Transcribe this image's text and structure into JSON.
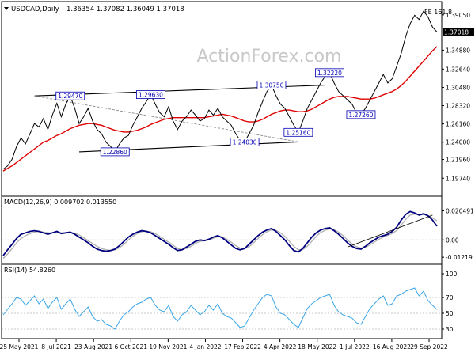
{
  "header": {
    "symbol": "USDCAD,Daily",
    "ohlc": "1.36354 1.37082 1.36049 1.37018"
  },
  "watermark": "ActionForex.com",
  "colors": {
    "price": "#000000",
    "ma55": "#e00000",
    "macd": "#00007f",
    "signal": "#b0b0b0",
    "rsi": "#3aa6e8",
    "level_box": "#0000b4",
    "trendline": "#000000",
    "grid": "#c8c8c8",
    "dotted": "#888888"
  },
  "chart_data": [
    {
      "type": "line",
      "name": "price",
      "title": "USDCAD,Daily",
      "ylim": [
        1.178,
        1.395
      ],
      "y_ticks": [
        "1.39050",
        "1.34880",
        "1.32640",
        "1.30480",
        "1.28320",
        "1.26160",
        "1.24000",
        "1.21960",
        "1.19740"
      ],
      "y_tick_values": [
        1.3905,
        1.3488,
        1.3264,
        1.3048,
        1.2832,
        1.2616,
        1.24,
        1.2196,
        1.1974
      ],
      "current_price_label": "1.37018",
      "current_price": 1.37018,
      "fib_label": "FE 161.8",
      "fib_level": 1.401,
      "x_tick_labels": [
        "25 May 2021",
        "8 Jul 2021",
        "23 Aug 2021",
        "6 Oct 2021",
        "19 Nov 2021",
        "4 Jan 2022",
        "17 Feb 2022",
        "4 Apr 2022",
        "18 May 2022",
        "1 Jul 2022",
        "16 Aug 2022",
        "29 Sep 2022"
      ],
      "closes": [
        1.208,
        1.212,
        1.22,
        1.235,
        1.245,
        1.238,
        1.25,
        1.262,
        1.258,
        1.268,
        1.255,
        1.272,
        1.286,
        1.27,
        1.285,
        1.2947,
        1.28,
        1.262,
        1.27,
        1.28,
        1.265,
        1.255,
        1.25,
        1.24,
        1.235,
        1.2286,
        1.238,
        1.245,
        1.248,
        1.26,
        1.27,
        1.28,
        1.288,
        1.2963,
        1.285,
        1.275,
        1.27,
        1.282,
        1.265,
        1.255,
        1.265,
        1.27,
        1.278,
        1.272,
        1.265,
        1.268,
        1.278,
        1.272,
        1.28,
        1.27,
        1.265,
        1.26,
        1.25,
        1.242,
        1.2403,
        1.25,
        1.26,
        1.275,
        1.288,
        1.3,
        1.3075,
        1.295,
        1.285,
        1.28,
        1.27,
        1.26,
        1.2516,
        1.265,
        1.28,
        1.29,
        1.3,
        1.31,
        1.318,
        1.3222,
        1.31,
        1.3,
        1.295,
        1.29,
        1.285,
        1.275,
        1.2726,
        1.28,
        1.29,
        1.3,
        1.31,
        1.32,
        1.31,
        1.315,
        1.33,
        1.345,
        1.365,
        1.38,
        1.39,
        1.385,
        1.395,
        1.388,
        1.376,
        1.3702
      ],
      "ma55": [
        1.206,
        1.209,
        1.212,
        1.216,
        1.22,
        1.224,
        1.228,
        1.232,
        1.236,
        1.24,
        1.242,
        1.245,
        1.248,
        1.25,
        1.253,
        1.256,
        1.258,
        1.26,
        1.261,
        1.262,
        1.262,
        1.261,
        1.26,
        1.258,
        1.256,
        1.254,
        1.253,
        1.252,
        1.252,
        1.253,
        1.254,
        1.256,
        1.258,
        1.261,
        1.263,
        1.265,
        1.267,
        1.268,
        1.269,
        1.269,
        1.269,
        1.269,
        1.269,
        1.269,
        1.269,
        1.269,
        1.27,
        1.271,
        1.272,
        1.273,
        1.272,
        1.271,
        1.269,
        1.267,
        1.265,
        1.264,
        1.264,
        1.265,
        1.267,
        1.27,
        1.273,
        1.275,
        1.277,
        1.278,
        1.278,
        1.277,
        1.276,
        1.276,
        1.277,
        1.279,
        1.282,
        1.285,
        1.288,
        1.291,
        1.293,
        1.294,
        1.294,
        1.294,
        1.293,
        1.292,
        1.291,
        1.291,
        1.291,
        1.292,
        1.294,
        1.296,
        1.298,
        1.3,
        1.303,
        1.307,
        1.312,
        1.318,
        1.324,
        1.33,
        1.336,
        1.342,
        1.348,
        1.353
      ],
      "levels": [
        {
          "label": "1.29470",
          "value": 1.2947,
          "index": 15
        },
        {
          "label": "1.22860",
          "value": 1.2286,
          "index": 25
        },
        {
          "label": "1.29630",
          "value": 1.2963,
          "index": 33
        },
        {
          "label": "1.24030",
          "value": 1.2403,
          "index": 54
        },
        {
          "label": "1.30750",
          "value": 1.3075,
          "index": 60
        },
        {
          "label": "1.25160",
          "value": 1.2516,
          "index": 66
        },
        {
          "label": "1.32220",
          "value": 1.3222,
          "index": 73
        },
        {
          "label": "1.27260",
          "value": 1.2726,
          "index": 80
        }
      ]
    },
    {
      "type": "line",
      "name": "macd",
      "title": "MACD(12,26,9) 0.009702 0.013550",
      "ylim": [
        -0.016,
        0.023
      ],
      "y_ticks": [
        "0.020491",
        "0.00",
        "-0.01219"
      ],
      "y_tick_values": [
        0.020491,
        0.0,
        -0.01219
      ],
      "macd": [
        -0.011,
        -0.007,
        -0.003,
        0.001,
        0.004,
        0.005,
        0.006,
        0.0065,
        0.006,
        0.005,
        0.004,
        0.005,
        0.006,
        0.0045,
        0.005,
        0.0055,
        0.004,
        0.002,
        0.0,
        -0.002,
        -0.0045,
        -0.0065,
        -0.0075,
        -0.008,
        -0.0075,
        -0.0065,
        -0.004,
        -0.001,
        0.002,
        0.004,
        0.0055,
        0.0065,
        0.006,
        0.005,
        0.003,
        0.001,
        -0.001,
        -0.003,
        -0.0055,
        -0.0075,
        -0.007,
        -0.005,
        -0.003,
        -0.001,
        0.0,
        -0.0005,
        0.0005,
        0.002,
        0.003,
        0.0015,
        -0.001,
        -0.0035,
        -0.006,
        -0.007,
        -0.006,
        -0.003,
        0.0,
        0.003,
        0.0055,
        0.007,
        0.008,
        0.006,
        0.003,
        0.0,
        -0.004,
        -0.0075,
        -0.0085,
        -0.006,
        -0.002,
        0.002,
        0.005,
        0.007,
        0.008,
        0.0085,
        0.0065,
        0.004,
        0.001,
        -0.002,
        -0.0045,
        -0.006,
        -0.0065,
        -0.0045,
        -0.002,
        0.0,
        0.002,
        0.003,
        0.004,
        0.006,
        0.009,
        0.014,
        0.018,
        0.02,
        0.019,
        0.0175,
        0.0185,
        0.017,
        0.014,
        0.0097
      ],
      "signal": [
        -0.013,
        -0.01,
        -0.006,
        -0.002,
        0.001,
        0.003,
        0.0045,
        0.0055,
        0.006,
        0.0055,
        0.005,
        0.005,
        0.0055,
        0.005,
        0.005,
        0.0052,
        0.0048,
        0.0035,
        0.0015,
        -0.0005,
        -0.0025,
        -0.0045,
        -0.006,
        -0.007,
        -0.0075,
        -0.007,
        -0.0055,
        -0.003,
        0.0,
        0.0025,
        0.0045,
        0.0058,
        0.0062,
        0.0058,
        0.0045,
        0.0025,
        0.0005,
        -0.0015,
        -0.0038,
        -0.006,
        -0.0068,
        -0.006,
        -0.0045,
        -0.0025,
        -0.001,
        -0.0005,
        0.0,
        0.0012,
        0.0022,
        0.002,
        0.0005,
        -0.0015,
        -0.004,
        -0.0058,
        -0.0062,
        -0.0048,
        -0.002,
        0.001,
        0.0038,
        0.0058,
        0.007,
        0.0068,
        0.005,
        0.0025,
        -0.001,
        -0.0045,
        -0.007,
        -0.0068,
        -0.0045,
        -0.001,
        0.0025,
        0.0052,
        0.0068,
        0.0078,
        0.0072,
        0.0055,
        0.003,
        0.0,
        -0.0028,
        -0.0048,
        -0.0058,
        -0.0052,
        -0.0035,
        -0.0015,
        0.0005,
        0.002,
        0.0032,
        0.0045,
        0.0068,
        0.0105,
        0.0145,
        0.0175,
        0.0182,
        0.0178,
        0.018,
        0.0172,
        0.0155,
        0.0136
      ]
    },
    {
      "type": "line",
      "name": "rsi",
      "title": "RSI(14) 54.8260",
      "ylim": [
        20,
        100
      ],
      "y_ticks": [
        "100",
        "70",
        "50",
        "30"
      ],
      "y_tick_values": [
        100,
        70,
        50,
        30
      ],
      "rsi": [
        48,
        55,
        62,
        70,
        68,
        60,
        66,
        72,
        62,
        68,
        56,
        64,
        70,
        55,
        62,
        68,
        55,
        46,
        52,
        58,
        46,
        40,
        42,
        36,
        34,
        30,
        40,
        48,
        52,
        58,
        62,
        64,
        68,
        70,
        60,
        54,
        52,
        60,
        46,
        40,
        48,
        52,
        60,
        54,
        48,
        52,
        60,
        54,
        62,
        50,
        46,
        44,
        38,
        32,
        34,
        44,
        54,
        62,
        70,
        74,
        72,
        58,
        50,
        48,
        42,
        36,
        32,
        44,
        56,
        62,
        66,
        70,
        72,
        74,
        60,
        52,
        48,
        46,
        44,
        38,
        36,
        46,
        56,
        62,
        68,
        72,
        60,
        62,
        72,
        74,
        78,
        80,
        82,
        72,
        78,
        66,
        60,
        54.8
      ]
    }
  ]
}
